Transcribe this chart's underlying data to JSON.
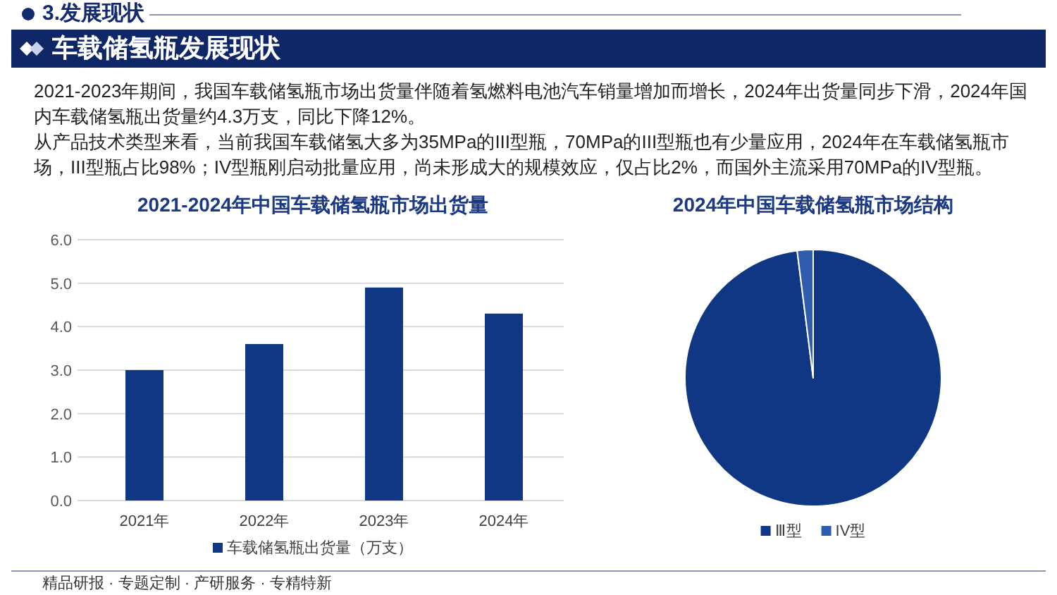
{
  "chart_data": [
    {
      "type": "bar",
      "title": "2021-2024年中国车载储氢瓶市场出货量",
      "categories": [
        "2021年",
        "2022年",
        "2023年",
        "2024年"
      ],
      "series": [
        {
          "name": "车载储氢瓶出货量（万支）",
          "color": "#0f3783",
          "values": [
            3.0,
            3.6,
            4.9,
            4.3
          ]
        }
      ],
      "ylim": [
        0,
        6
      ],
      "yticks": [
        {
          "value": 0,
          "label": "0.0"
        },
        {
          "value": 1,
          "label": "1.0"
        },
        {
          "value": 2,
          "label": "2.0"
        },
        {
          "value": 3,
          "label": "3.0"
        },
        {
          "value": 4,
          "label": "4.0"
        },
        {
          "value": 5,
          "label": "5.0"
        },
        {
          "value": 6,
          "label": "6.0"
        }
      ],
      "grid": "y",
      "legend": "bottom",
      "annotations": [
        "3.发展现状",
        "车载储氢瓶发展现状",
        "2021-2023年期间，我国车载储氢瓶市场出货量伴随着氢燃料电池汽车销量增加而增长，2024年出货量同步下滑，2024年国内车载储氢瓶出货量约4.3万支，同比下降12%。",
        "从产品技术类型来看，当前我国车载储氢大多为35MPa的III型瓶，70MPa的III型瓶也有少量应用，2024年在车载储氢瓶市场，III型瓶占比98%；IV型瓶刚启动批量应用，尚未形成大的规模效应，仅占比2%，而国外主流采用70MPa的IV型瓶。",
        "精品研报 · 专题定制 · 产研服务 · 专精特新"
      ]
    },
    {
      "type": "pie",
      "title": "2024年中国车载储氢瓶市场结构",
      "categories": [
        "Ⅲ型",
        "IV型"
      ],
      "values": [
        98,
        2
      ],
      "colors": [
        "#0f3783",
        "#2f5cad"
      ],
      "legend": "bottom"
    }
  ]
}
